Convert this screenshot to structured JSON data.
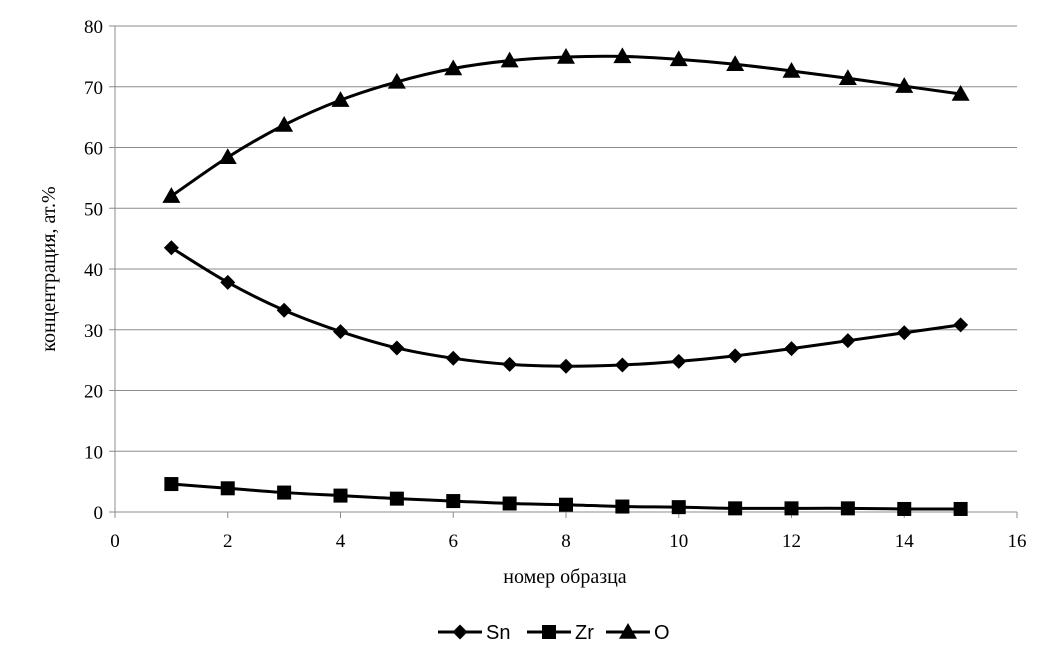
{
  "chart_data": {
    "type": "line",
    "xlabel": "номер образца",
    "ylabel": "концентрация, ат.%",
    "xlim": [
      0,
      16
    ],
    "ylim": [
      0,
      80
    ],
    "x_ticks": [
      "0",
      "2",
      "4",
      "6",
      "8",
      "10",
      "12",
      "14",
      "16"
    ],
    "y_ticks": [
      "0",
      "10",
      "20",
      "30",
      "40",
      "50",
      "60",
      "70",
      "80"
    ],
    "grid": "horizontal",
    "legend_position": "bottom",
    "x": [
      1,
      2,
      3,
      4,
      5,
      6,
      7,
      8,
      9,
      10,
      11,
      12,
      13,
      14,
      15
    ],
    "series": [
      {
        "name": "Sn",
        "marker": "diamond",
        "color": "#000000",
        "values": [
          43.5,
          37.8,
          33.2,
          29.7,
          27.0,
          25.3,
          24.3,
          24.0,
          24.2,
          24.8,
          25.7,
          26.9,
          28.2,
          29.5,
          30.8
        ]
      },
      {
        "name": "Zr",
        "marker": "square",
        "color": "#000000",
        "values": [
          4.6,
          3.9,
          3.2,
          2.7,
          2.2,
          1.8,
          1.4,
          1.2,
          0.9,
          0.8,
          0.6,
          0.6,
          0.6,
          0.5,
          0.5
        ]
      },
      {
        "name": "O",
        "marker": "triangle",
        "color": "#000000",
        "values": [
          52.0,
          58.4,
          63.7,
          67.8,
          70.8,
          73.0,
          74.3,
          74.9,
          75.0,
          74.5,
          73.7,
          72.6,
          71.4,
          70.1,
          68.8
        ]
      }
    ]
  }
}
